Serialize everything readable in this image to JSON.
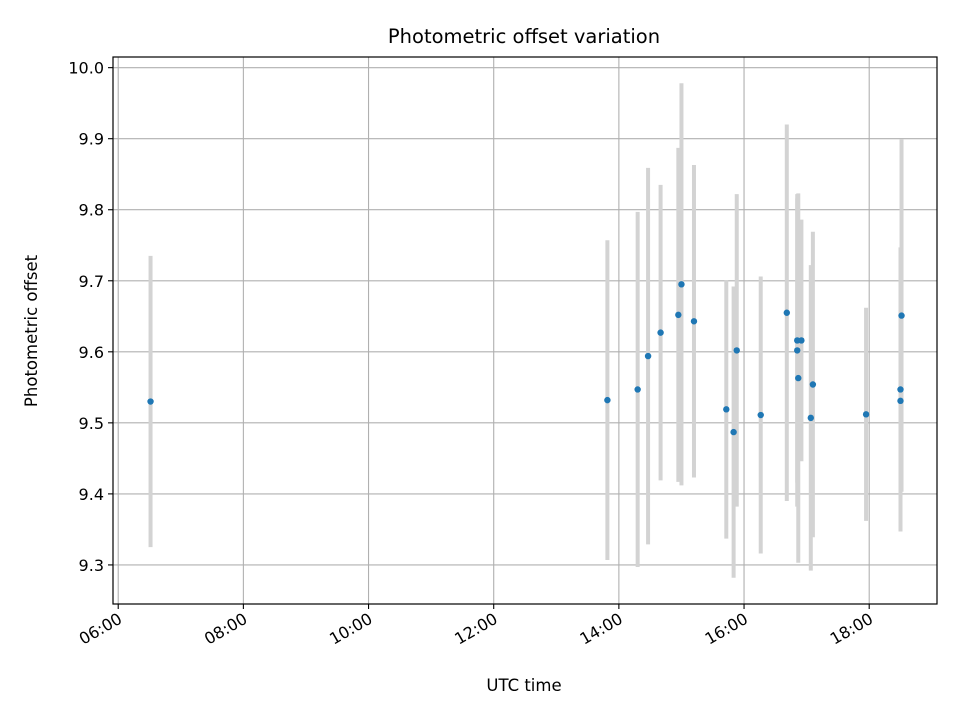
{
  "chart_data": {
    "type": "scatter",
    "title": "Photometric offset variation",
    "xlabel": "UTC time",
    "ylabel": "Photometric offset",
    "x_axis_type": "time",
    "xlim": [
      "05:55",
      "19:05"
    ],
    "ylim": [
      9.245,
      10.015
    ],
    "x_ticks": [
      "06:00",
      "08:00",
      "10:00",
      "12:00",
      "14:00",
      "16:00",
      "18:00"
    ],
    "y_ticks": [
      "9.3",
      "9.4",
      "9.5",
      "9.6",
      "9.7",
      "9.8",
      "9.9",
      "10.0"
    ],
    "grid": true,
    "legend": false,
    "marker_color": "#1f77b4",
    "errorbar_color": "#d3d3d3",
    "points": [
      {
        "t": "06:31",
        "y": 9.53,
        "err": 0.205
      },
      {
        "t": "13:49",
        "y": 9.532,
        "err": 0.225
      },
      {
        "t": "14:18",
        "y": 9.547,
        "err": 0.25
      },
      {
        "t": "14:28",
        "y": 9.594,
        "err": 0.265
      },
      {
        "t": "14:40",
        "y": 9.627,
        "err": 0.208
      },
      {
        "t": "14:57",
        "y": 9.652,
        "err": 0.235
      },
      {
        "t": "15:00",
        "y": 9.695,
        "err": 0.283
      },
      {
        "t": "15:12",
        "y": 9.643,
        "err": 0.22
      },
      {
        "t": "15:43",
        "y": 9.519,
        "err": 0.182
      },
      {
        "t": "15:50",
        "y": 9.487,
        "err": 0.205
      },
      {
        "t": "15:53",
        "y": 9.602,
        "err": 0.22
      },
      {
        "t": "16:16",
        "y": 9.511,
        "err": 0.195
      },
      {
        "t": "16:41",
        "y": 9.655,
        "err": 0.265
      },
      {
        "t": "16:51",
        "y": 9.616,
        "err": 0.2
      },
      {
        "t": "16:51",
        "y": 9.602,
        "err": 0.22
      },
      {
        "t": "16:52",
        "y": 9.563,
        "err": 0.26
      },
      {
        "t": "16:55",
        "y": 9.616,
        "err": 0.17
      },
      {
        "t": "17:04",
        "y": 9.507,
        "err": 0.215
      },
      {
        "t": "17:06",
        "y": 9.554,
        "err": 0.215
      },
      {
        "t": "17:57",
        "y": 9.512,
        "err": 0.15
      },
      {
        "t": "18:30",
        "y": 9.547,
        "err": 0.2
      },
      {
        "t": "18:30",
        "y": 9.531,
        "err": 0.18
      },
      {
        "t": "18:31",
        "y": 9.651,
        "err": 0.248
      }
    ]
  }
}
